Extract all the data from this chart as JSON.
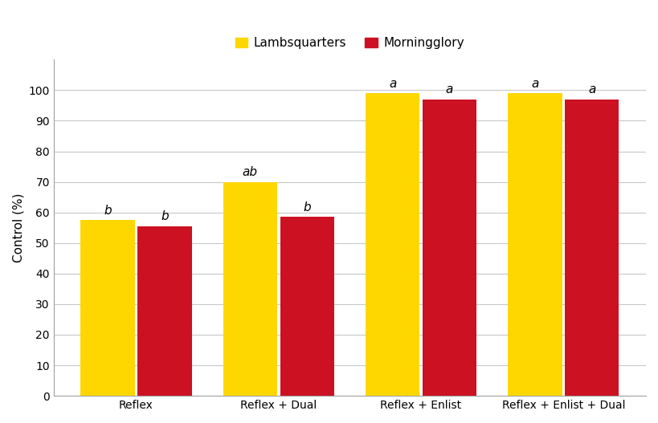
{
  "categories": [
    "Reflex",
    "Reflex + Dual",
    "Reflex + Enlist",
    "Reflex + Enlist + Dual"
  ],
  "lambsquarters": [
    57.5,
    70.0,
    99.0,
    99.0
  ],
  "morningglory": [
    55.5,
    58.5,
    97.0,
    97.0
  ],
  "lambsquarters_labels": [
    "b",
    "ab",
    "a",
    "a"
  ],
  "morningglory_labels": [
    "b",
    "b",
    "a",
    "a"
  ],
  "lambsquarters_color": "#FFD700",
  "morningglory_color": "#CC1122",
  "ylabel": "Control (%)",
  "ylim": [
    0,
    110
  ],
  "yticks": [
    0,
    10,
    20,
    30,
    40,
    50,
    60,
    70,
    80,
    90,
    100
  ],
  "legend_lambsquarters": "Lambsquarters",
  "legend_morningglory": "Morningglory",
  "bar_width": 0.38,
  "label_fontsize": 11,
  "tick_fontsize": 10,
  "legend_fontsize": 11,
  "background_color": "#ffffff",
  "grid_color": "#c8c8c8",
  "border_color": "#a0a0a0"
}
